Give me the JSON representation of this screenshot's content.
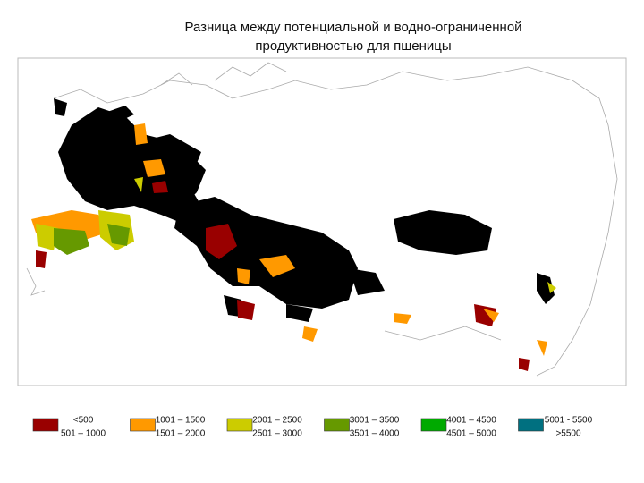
{
  "title": {
    "lines": [
      "Разница между потенциальной и водно-ограниченной",
      "продуктивностью для пшеницы"
    ]
  },
  "legend": {
    "items": [
      {
        "color": "#990000",
        "labels": [
          "<500",
          "501 – 1000"
        ]
      },
      {
        "color": "#ff9900",
        "labels": [
          "1001 – 1500",
          "1501 – 2000"
        ]
      },
      {
        "color": "#cccc00",
        "labels": [
          "2001 – 2500",
          "2501 – 3000"
        ]
      },
      {
        "color": "#669900",
        "labels": [
          "3001 – 3500",
          "3501 – 4000"
        ]
      },
      {
        "color": "#00aa00",
        "labels": [
          "4001 – 4500",
          "4501 – 5000"
        ]
      },
      {
        "color": "#007080",
        "labels": [
          "5001 - 5500",
          ">5500"
        ]
      }
    ]
  }
}
